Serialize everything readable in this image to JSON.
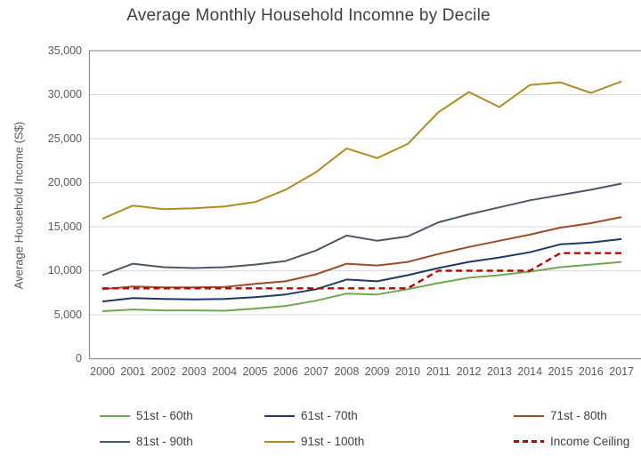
{
  "title": "Average Monthly Household Incomne by Decile",
  "chart_data": {
    "type": "line",
    "title": "Average Monthly Household Incomne by Decile",
    "xlabel": "",
    "ylabel": "Average Household Income (S$)",
    "ylim": [
      0,
      35000
    ],
    "y_tick_step": 5000,
    "y_tick_values": [
      0,
      5000,
      10000,
      15000,
      20000,
      25000,
      30000,
      35000
    ],
    "y_tick_labels": [
      "0",
      "5,000",
      "10,000",
      "15,000",
      "20,000",
      "25,000",
      "30,000",
      "35,000"
    ],
    "x": [
      2000,
      2001,
      2002,
      2003,
      2004,
      2005,
      2006,
      2007,
      2008,
      2009,
      2010,
      2011,
      2012,
      2013,
      2014,
      2015,
      2016,
      2017
    ],
    "x_tick_labels": [
      "2000",
      "2001",
      "2002",
      "2003",
      "2004",
      "2005",
      "2006",
      "2007",
      "2008",
      "2009",
      "2010",
      "2011",
      "2012",
      "2013",
      "2014",
      "2015",
      "2016",
      "2017"
    ],
    "grid": "horizontal",
    "legend_position": "bottom",
    "axis_color": "#8c8c8c",
    "gridline_color": "#d9d9d9",
    "top_border_color": "#a3aab4",
    "series": [
      {
        "name": "51st - 60th",
        "color": "#70A850",
        "style": "solid",
        "values": [
          5400,
          5600,
          5500,
          5500,
          5450,
          5700,
          6000,
          6600,
          7400,
          7300,
          7900,
          8600,
          9200,
          9500,
          9900,
          10400,
          10700,
          11000
        ]
      },
      {
        "name": "61st - 70th",
        "color": "#1F3864",
        "style": "solid",
        "values": [
          6500,
          6900,
          6800,
          6750,
          6800,
          7000,
          7300,
          7900,
          9000,
          8800,
          9500,
          10300,
          11000,
          11500,
          12100,
          13000,
          13200,
          13600
        ]
      },
      {
        "name": "71st - 80th",
        "color": "#9E4B28",
        "style": "solid",
        "values": [
          7900,
          8200,
          8100,
          8100,
          8150,
          8500,
          8800,
          9600,
          10800,
          10600,
          11000,
          11900,
          12700,
          13400,
          14100,
          14900,
          15400,
          16100
        ]
      },
      {
        "name": "81st - 90th",
        "color": "#4C5866",
        "style": "solid",
        "values": [
          9500,
          10800,
          10400,
          10300,
          10400,
          10700,
          11100,
          12300,
          14000,
          13400,
          13900,
          15500,
          16400,
          17200,
          18000,
          18600,
          19200,
          19900
        ]
      },
      {
        "name": "91st - 100th",
        "color": "#AE8D22",
        "style": "solid",
        "values": [
          15900,
          17400,
          17000,
          17100,
          17300,
          17800,
          19200,
          21200,
          23900,
          22800,
          24400,
          28000,
          30300,
          28600,
          31100,
          31400,
          30200,
          31500
        ]
      },
      {
        "name": "Income Ceiling",
        "color": "#C00000",
        "style": "dashed",
        "values": [
          8000,
          8000,
          8000,
          8000,
          8000,
          8000,
          8000,
          8000,
          8000,
          8000,
          8000,
          10000,
          10000,
          10000,
          10000,
          12000,
          12000,
          12000
        ]
      }
    ]
  }
}
